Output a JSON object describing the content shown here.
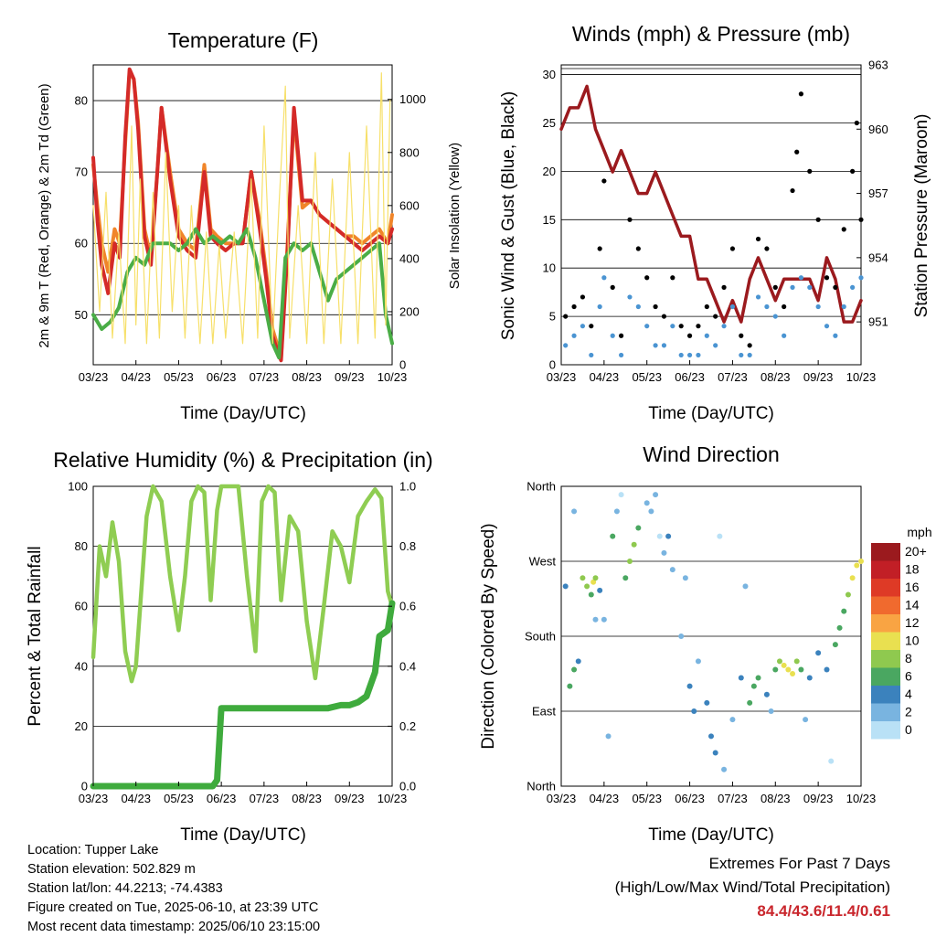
{
  "info": {
    "location": "Location: Tupper Lake",
    "elevation": "Station elevation: 502.829 m",
    "latlon": "Station lat/lon: 44.2213; -74.4383",
    "created": "Figure created on Tue, 2025-06-10, at 23:39 UTC",
    "recent": "Most recent data timestamp: 2025/06/10 23:15:00"
  },
  "extremes": {
    "title": "Extremes For Past 7 Days",
    "subtitle": "(High/Low/Max Wind/Total Precipitation)",
    "values": "84.4/43.6/11.4/0.61"
  },
  "colors": {
    "temp9m": "#f0852a",
    "temp2m": "#d42a28",
    "dewpoint": "#4aad46",
    "solar": "#f7e06a",
    "gust": "#000000",
    "sonic": "#4a94d2",
    "pressure": "#9b1a1e",
    "rh": "#8fcd52",
    "precip": "#3fab3d"
  },
  "chart_data": [
    {
      "type": "line",
      "title": "Temperature (F)",
      "xlabel": "Time (Day/UTC)",
      "ylabel": "2m & 9m T (Red, Orange) & 2m Td (Green)",
      "ylabel_right": "Solar Insolation (Yellow)",
      "x_ticks": [
        "03/23",
        "04/23",
        "05/23",
        "06/23",
        "07/23",
        "08/23",
        "09/23",
        "10/23"
      ],
      "y_ticks": [
        "50",
        "60",
        "70",
        "80"
      ],
      "y_right_ticks": [
        "0",
        "200",
        "400",
        "600",
        "800",
        "1000"
      ],
      "ylim": [
        43,
        85
      ],
      "ylim_right": [
        0,
        1130
      ],
      "series": [
        {
          "key": "t9m",
          "color": "#f0852a",
          "x": [
            0,
            0.1,
            0.2,
            0.35,
            0.5,
            0.62,
            0.75,
            0.85,
            0.95,
            1.05,
            1.2,
            1.35,
            1.5,
            1.6,
            1.8,
            2.0,
            2.2,
            2.4,
            2.6,
            2.75,
            2.9,
            3.1,
            3.3,
            3.5,
            3.7,
            3.9,
            4.05,
            4.2,
            4.4,
            4.55,
            4.7,
            4.9,
            5.1,
            5.3,
            5.5,
            5.7,
            5.9,
            6.1,
            6.3,
            6.5,
            6.7,
            6.9,
            7.0
          ],
          "values": [
            71,
            65,
            60,
            56,
            62,
            60,
            74,
            84,
            83,
            77,
            62,
            58,
            70,
            79,
            70,
            62,
            60,
            59,
            71,
            62,
            61,
            60,
            60,
            60,
            70,
            63,
            56,
            48,
            44,
            60,
            78,
            65,
            66,
            64,
            63,
            62,
            61,
            61,
            60,
            61,
            62,
            60,
            64
          ]
        },
        {
          "key": "t2m",
          "color": "#d42a28",
          "x": [
            0,
            0.1,
            0.2,
            0.35,
            0.5,
            0.62,
            0.75,
            0.85,
            0.95,
            1.05,
            1.2,
            1.35,
            1.5,
            1.6,
            1.8,
            2.0,
            2.2,
            2.4,
            2.6,
            2.75,
            2.9,
            3.1,
            3.3,
            3.5,
            3.7,
            3.9,
            4.05,
            4.2,
            4.4,
            4.55,
            4.7,
            4.9,
            5.1,
            5.3,
            5.5,
            5.7,
            5.9,
            6.1,
            6.3,
            6.5,
            6.7,
            6.9,
            7.0
          ],
          "values": [
            72,
            63,
            57,
            53,
            60,
            58,
            75,
            84.4,
            83,
            76,
            61,
            57,
            70,
            79,
            69,
            61,
            59,
            58,
            70,
            61,
            60,
            59,
            60,
            60,
            70,
            62,
            55,
            47,
            43.6,
            59,
            79,
            66,
            66,
            64,
            63,
            62,
            61,
            60,
            59,
            60,
            61,
            60,
            62
          ]
        },
        {
          "key": "td",
          "color": "#4aad46",
          "x": [
            0,
            0.2,
            0.4,
            0.6,
            0.8,
            1.0,
            1.2,
            1.4,
            1.6,
            1.8,
            2.0,
            2.2,
            2.4,
            2.6,
            2.8,
            3.0,
            3.2,
            3.4,
            3.6,
            3.8,
            4.0,
            4.2,
            4.35,
            4.5,
            4.7,
            4.9,
            5.1,
            5.3,
            5.5,
            5.7,
            5.9,
            6.1,
            6.3,
            6.5,
            6.7,
            6.85,
            7.0
          ],
          "values": [
            50,
            48,
            49,
            51,
            56,
            58,
            57,
            60,
            60,
            60,
            59,
            60,
            62,
            60,
            61,
            60,
            61,
            60,
            62,
            58,
            52,
            46,
            44,
            58,
            60,
            59,
            60,
            56,
            52,
            55,
            56,
            57,
            58,
            59,
            60,
            50,
            46
          ]
        },
        {
          "key": "solar",
          "color": "#f7e06a",
          "axis": "right",
          "x": [
            0,
            0.15,
            0.3,
            0.45,
            0.6,
            0.75,
            0.9,
            1.0,
            1.1,
            1.25,
            1.4,
            1.55,
            1.7,
            1.85,
            2.0,
            2.15,
            2.3,
            2.5,
            2.65,
            2.8,
            2.95,
            3.1,
            3.3,
            3.5,
            3.7,
            3.85,
            4.0,
            4.2,
            4.35,
            4.5,
            4.6,
            4.8,
            5.0,
            5.2,
            5.4,
            5.6,
            5.8,
            6.0,
            6.2,
            6.4,
            6.6,
            6.75,
            6.85,
            6.95
          ],
          "values": [
            600,
            200,
            650,
            100,
            500,
            80,
            900,
            150,
            700,
            80,
            650,
            100,
            800,
            200,
            600,
            100,
            600,
            80,
            500,
            80,
            450,
            100,
            500,
            80,
            700,
            100,
            900,
            80,
            600,
            1050,
            100,
            600,
            80,
            800,
            80,
            700,
            80,
            800,
            80,
            900,
            100,
            1100,
            150,
            1000
          ]
        }
      ]
    },
    {
      "type": "line",
      "title": "Winds (mph) & Pressure (mb)",
      "xlabel": "Time (Day/UTC)",
      "ylabel": "Sonic Wind & Gust (Blue, Black)",
      "ylabel_right": "Station Pressure (Maroon)",
      "x_ticks": [
        "03/23",
        "04/23",
        "05/23",
        "06/23",
        "07/23",
        "08/23",
        "09/23",
        "10/23"
      ],
      "y_ticks": [
        "0",
        "5",
        "10",
        "15",
        "20",
        "25",
        "30"
      ],
      "y_right_ticks": [
        "951",
        "954",
        "957",
        "960",
        "963"
      ],
      "ylim": [
        0,
        31
      ],
      "ylim_right": [
        949,
        963
      ],
      "series": [
        {
          "key": "pressure",
          "color": "#9b1a1e",
          "axis": "right",
          "x": [
            0,
            0.2,
            0.4,
            0.6,
            0.7,
            0.8,
            1.0,
            1.2,
            1.4,
            1.6,
            1.8,
            2.0,
            2.2,
            2.4,
            2.6,
            2.8,
            3.0,
            3.2,
            3.4,
            3.6,
            3.8,
            4.0,
            4.2,
            4.4,
            4.6,
            4.8,
            5.0,
            5.2,
            5.4,
            5.6,
            5.8,
            6.0,
            6.2,
            6.4,
            6.6,
            6.8,
            7.0
          ],
          "values": [
            960,
            961,
            961,
            962,
            961,
            960,
            959,
            958,
            959,
            958,
            957,
            957,
            958,
            957,
            956,
            955,
            955,
            953,
            953,
            952,
            951,
            952,
            951,
            953,
            954,
            953,
            952,
            953,
            953,
            953,
            953,
            952,
            954,
            953,
            951,
            951,
            952
          ]
        },
        {
          "key": "gust",
          "color": "#000000",
          "scatter": true,
          "x": [
            0.1,
            0.3,
            0.5,
            0.7,
            0.9,
            1.0,
            1.2,
            1.4,
            1.6,
            1.8,
            2.0,
            2.2,
            2.4,
            2.6,
            2.8,
            3.0,
            3.2,
            3.4,
            3.6,
            3.8,
            4.0,
            4.2,
            4.4,
            4.6,
            4.8,
            5.0,
            5.2,
            5.4,
            5.5,
            5.6,
            5.8,
            6.0,
            6.2,
            6.4,
            6.6,
            6.8,
            6.9,
            7.0
          ],
          "values": [
            5,
            6,
            7,
            4,
            12,
            19,
            8,
            3,
            15,
            12,
            9,
            6,
            5,
            9,
            4,
            3,
            4,
            6,
            5,
            8,
            12,
            3,
            2,
            13,
            12,
            8,
            6,
            18,
            22,
            28,
            20,
            15,
            9,
            8,
            14,
            20,
            25,
            15
          ]
        },
        {
          "key": "sonic",
          "color": "#4a94d2",
          "scatter": true,
          "x": [
            0.1,
            0.3,
            0.5,
            0.7,
            0.9,
            1.0,
            1.2,
            1.4,
            1.6,
            1.8,
            2.0,
            2.2,
            2.4,
            2.6,
            2.8,
            3.0,
            3.2,
            3.4,
            3.6,
            3.8,
            4.0,
            4.2,
            4.4,
            4.6,
            4.8,
            5.0,
            5.2,
            5.4,
            5.6,
            5.8,
            6.0,
            6.2,
            6.4,
            6.6,
            6.8,
            7.0
          ],
          "values": [
            2,
            3,
            4,
            1,
            6,
            9,
            3,
            1,
            7,
            6,
            4,
            2,
            2,
            4,
            1,
            1,
            1,
            3,
            2,
            4,
            6,
            1,
            1,
            7,
            6,
            5,
            3,
            8,
            9,
            8,
            6,
            4,
            3,
            6,
            8,
            9
          ]
        }
      ]
    },
    {
      "type": "line",
      "title": "Relative Humidity (%) & Precipitation (in)",
      "xlabel": "Time (Day/UTC)",
      "ylabel": "Percent & Total Rainfall",
      "x_ticks": [
        "03/23",
        "04/23",
        "05/23",
        "06/23",
        "07/23",
        "08/23",
        "09/23",
        "10/23"
      ],
      "y_ticks": [
        "0",
        "20",
        "40",
        "60",
        "80",
        "100"
      ],
      "y_right_ticks": [
        "0.0",
        "0.2",
        "0.4",
        "0.6",
        "0.8",
        "1.0"
      ],
      "ylim": [
        0,
        100
      ],
      "ylim_right": [
        0,
        1
      ],
      "series": [
        {
          "key": "rh",
          "color": "#8fcd52",
          "x": [
            0,
            0.15,
            0.3,
            0.45,
            0.6,
            0.75,
            0.9,
            1.0,
            1.1,
            1.25,
            1.4,
            1.6,
            1.8,
            2.0,
            2.15,
            2.3,
            2.45,
            2.6,
            2.75,
            2.9,
            3.0,
            3.2,
            3.4,
            3.6,
            3.8,
            3.95,
            4.1,
            4.25,
            4.4,
            4.6,
            4.8,
            5.0,
            5.2,
            5.4,
            5.6,
            5.8,
            6.0,
            6.2,
            6.4,
            6.6,
            6.75,
            6.9,
            7.0
          ],
          "values": [
            43,
            80,
            70,
            88,
            75,
            45,
            35,
            40,
            60,
            90,
            100,
            95,
            70,
            52,
            70,
            95,
            100,
            98,
            62,
            92,
            100,
            100,
            100,
            70,
            45,
            95,
            100,
            98,
            62,
            90,
            85,
            55,
            36,
            60,
            85,
            80,
            68,
            90,
            95,
            99,
            96,
            65,
            60
          ]
        },
        {
          "key": "precip",
          "color": "#3fab3d",
          "axis": "right",
          "x": [
            0,
            1,
            2,
            2.8,
            2.9,
            3.0,
            3.2,
            4,
            5,
            5.5,
            5.8,
            6.0,
            6.2,
            6.4,
            6.6,
            6.7,
            6.8,
            6.9,
            7.0
          ],
          "values": [
            0,
            0,
            0,
            0,
            0.02,
            0.26,
            0.26,
            0.26,
            0.26,
            0.26,
            0.27,
            0.27,
            0.28,
            0.3,
            0.38,
            0.5,
            0.51,
            0.52,
            0.61
          ]
        }
      ]
    },
    {
      "type": "scatter",
      "title": "Wind Direction",
      "xlabel": "Time (Day/UTC)",
      "ylabel": "Direction (Colored By Speed)",
      "x_ticks": [
        "03/23",
        "04/23",
        "05/23",
        "06/23",
        "07/23",
        "08/23",
        "09/23",
        "10/23"
      ],
      "y_ticks": [
        "North",
        "East",
        "South",
        "West",
        "North"
      ],
      "ylim": [
        0,
        360
      ],
      "legend_title": "mph",
      "legend": [
        {
          "label": "20+",
          "color": "#9b1a1e"
        },
        {
          "label": "18",
          "color": "#c21f26"
        },
        {
          "label": "16",
          "color": "#de3a26"
        },
        {
          "label": "14",
          "color": "#f06a2e"
        },
        {
          "label": "12",
          "color": "#f9a443"
        },
        {
          "label": "10",
          "color": "#e9e050"
        },
        {
          "label": "8",
          "color": "#8fc94f"
        },
        {
          "label": "6",
          "color": "#4aa761"
        },
        {
          "label": "4",
          "color": "#3b82bd"
        },
        {
          "label": "2",
          "color": "#79b4e0"
        },
        {
          "label": "0",
          "color": "#b9e1f6"
        }
      ],
      "points": {
        "x": [
          0.1,
          0.2,
          0.3,
          0.4,
          0.5,
          0.6,
          0.7,
          0.75,
          0.8,
          0.9,
          1.0,
          1.1,
          1.2,
          1.3,
          1.5,
          1.6,
          1.7,
          1.8,
          2.0,
          2.1,
          2.2,
          2.4,
          2.5,
          2.6,
          2.8,
          3.0,
          3.1,
          3.2,
          3.4,
          3.5,
          3.6,
          3.8,
          4.0,
          4.2,
          4.4,
          4.5,
          4.6,
          4.8,
          5.0,
          5.1,
          5.2,
          5.3,
          5.4,
          5.5,
          5.6,
          5.8,
          6.0,
          6.2,
          6.4,
          6.5,
          6.6,
          6.7,
          6.8,
          6.9,
          7.0,
          0.3,
          0.8,
          1.4,
          2.3,
          2.9,
          3.7,
          4.3,
          4.9,
          5.7,
          6.3
        ],
        "y": [
          240,
          120,
          140,
          150,
          250,
          240,
          230,
          245,
          250,
          235,
          200,
          60,
          300,
          330,
          250,
          270,
          290,
          310,
          340,
          330,
          350,
          280,
          300,
          260,
          180,
          120,
          90,
          150,
          100,
          60,
          40,
          20,
          80,
          130,
          100,
          120,
          130,
          110,
          140,
          150,
          145,
          140,
          135,
          150,
          140,
          130,
          160,
          140,
          170,
          190,
          210,
          230,
          250,
          265,
          270,
          330,
          200,
          350,
          300,
          250,
          300,
          240,
          90,
          80,
          30
        ],
        "speed": [
          4,
          5,
          6,
          4,
          8,
          7,
          6,
          10,
          8,
          4,
          2,
          1,
          5,
          1,
          6,
          7,
          8,
          6,
          1,
          1,
          1,
          2,
          3,
          2,
          2,
          3,
          4,
          2,
          3,
          4,
          3,
          2,
          2,
          4,
          5,
          6,
          6,
          4,
          6,
          8,
          9,
          10,
          9,
          8,
          6,
          4,
          3,
          4,
          5,
          5,
          6,
          7,
          9,
          10,
          9,
          1,
          1,
          0,
          0,
          1,
          0,
          1,
          2,
          1,
          0
        ]
      }
    }
  ]
}
